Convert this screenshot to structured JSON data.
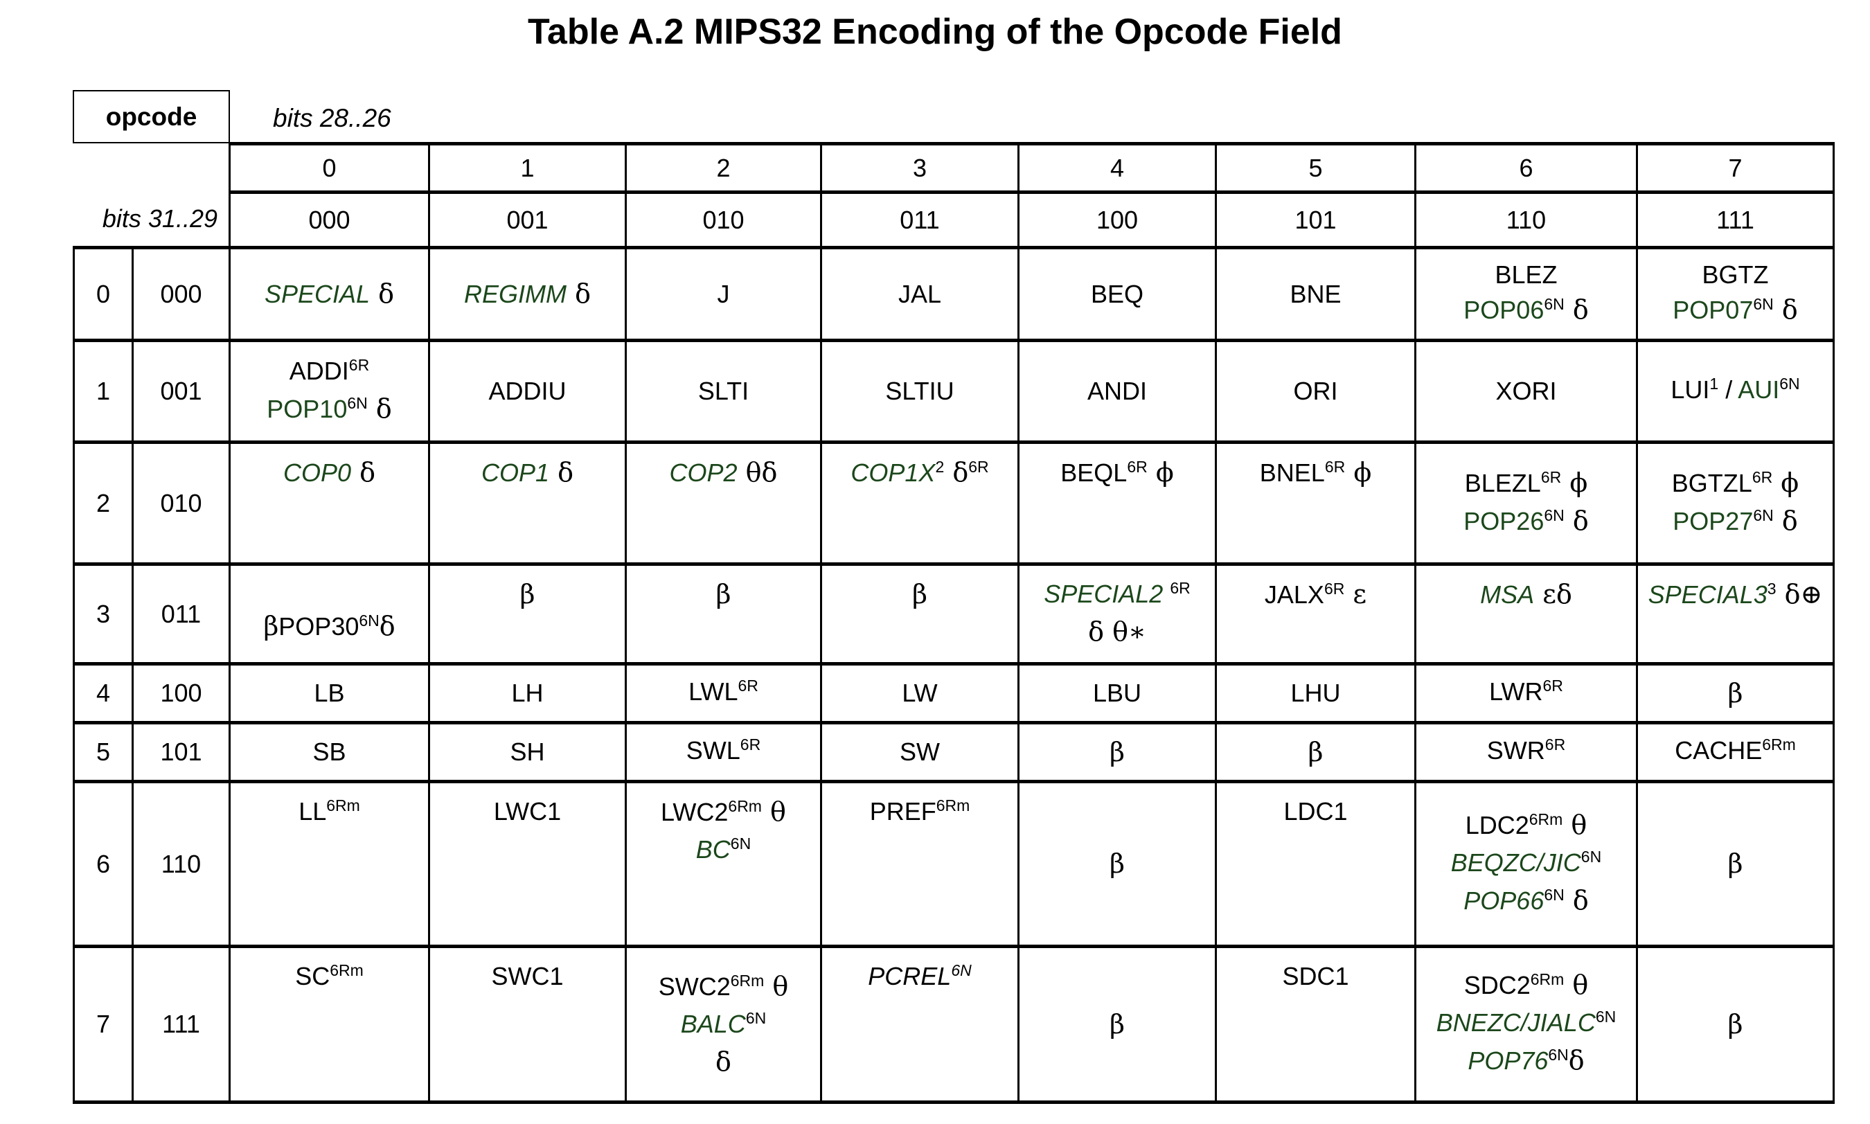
{
  "title": "Table A.2 MIPS32 Encoding of the Opcode Field",
  "corner": {
    "opcode_label": "opcode",
    "bits_cols_label": "bits 28..26",
    "bits_rows_label": "bits 31..29"
  },
  "colors": {
    "green": "#1b471b",
    "black": "#000000"
  },
  "columns": {
    "dec": [
      "0",
      "1",
      "2",
      "3",
      "4",
      "5",
      "6",
      "7"
    ],
    "bin": [
      "000",
      "001",
      "010",
      "011",
      "100",
      "101",
      "110",
      "111"
    ]
  },
  "rows": [
    {
      "dec": "0",
      "bin": "000",
      "cells": [
        {
          "lines": [
            [
              [
                "SPECIAL",
                "gi"
              ],
              [
                " δ",
                "sym"
              ]
            ]
          ]
        },
        {
          "lines": [
            [
              [
                "REGIMM",
                "gi"
              ],
              [
                " δ",
                "sym"
              ]
            ]
          ]
        },
        {
          "lines": [
            [
              [
                "J",
                "b"
              ]
            ]
          ]
        },
        {
          "lines": [
            [
              [
                "JAL",
                "b"
              ]
            ]
          ]
        },
        {
          "lines": [
            [
              [
                "BEQ",
                "b"
              ]
            ]
          ]
        },
        {
          "lines": [
            [
              [
                "BNE",
                "b"
              ]
            ]
          ]
        },
        {
          "lines": [
            [
              [
                "BLEZ",
                "b"
              ]
            ],
            [
              [
                "POP06",
                "g"
              ],
              [
                "6N",
                "sup"
              ],
              [
                " δ",
                "sym"
              ]
            ]
          ]
        },
        {
          "lines": [
            [
              [
                "BGTZ",
                "b"
              ]
            ],
            [
              [
                "POP07",
                "g"
              ],
              [
                "6N",
                "sup"
              ],
              [
                " δ",
                "sym"
              ]
            ]
          ]
        }
      ]
    },
    {
      "dec": "1",
      "bin": "001",
      "cells": [
        {
          "lines": [
            [
              [
                "ADDI",
                "b"
              ],
              [
                "6R",
                "sup"
              ]
            ],
            [
              [
                "POP10",
                "g"
              ],
              [
                "6N",
                "sup"
              ],
              [
                " δ",
                "sym"
              ]
            ]
          ]
        },
        {
          "lines": [
            [
              [
                "ADDIU",
                "b"
              ]
            ]
          ]
        },
        {
          "lines": [
            [
              [
                "SLTI",
                "b"
              ]
            ]
          ]
        },
        {
          "lines": [
            [
              [
                "SLTIU",
                "b"
              ]
            ]
          ]
        },
        {
          "lines": [
            [
              [
                "ANDI",
                "b"
              ]
            ]
          ]
        },
        {
          "lines": [
            [
              [
                "ORI",
                "b"
              ]
            ]
          ]
        },
        {
          "lines": [
            [
              [
                "XORI",
                "b"
              ]
            ]
          ]
        },
        {
          "lines": [
            [
              [
                "LUI",
                "b"
              ],
              [
                "1",
                "sup"
              ],
              [
                " / ",
                "b"
              ],
              [
                "AUI",
                "g"
              ],
              [
                "6N",
                "sup"
              ]
            ]
          ]
        }
      ]
    },
    {
      "dec": "2",
      "bin": "010",
      "cells": [
        {
          "va": "t",
          "lines": [
            [
              [
                "COP0",
                "gi"
              ],
              [
                " δ",
                "sym"
              ]
            ]
          ]
        },
        {
          "va": "t",
          "lines": [
            [
              [
                "COP1",
                "gi"
              ],
              [
                " δ",
                "sym"
              ]
            ]
          ]
        },
        {
          "va": "t",
          "lines": [
            [
              [
                "COP2",
                "gi"
              ],
              [
                " θδ",
                "sym"
              ]
            ]
          ]
        },
        {
          "va": "t",
          "lines": [
            [
              [
                "COP1X",
                "gi"
              ],
              [
                "2",
                "sup"
              ],
              [
                " δ",
                "sym"
              ],
              [
                "6R",
                "sup"
              ]
            ]
          ]
        },
        {
          "va": "t",
          "lines": [
            [
              [
                "BEQL",
                "b"
              ],
              [
                "6R",
                "sup"
              ],
              [
                " ϕ",
                "sym"
              ]
            ]
          ]
        },
        {
          "va": "t",
          "lines": [
            [
              [
                "BNEL",
                "b"
              ],
              [
                "6R",
                "sup"
              ],
              [
                " ϕ",
                "sym"
              ]
            ]
          ]
        },
        {
          "lines": [
            [
              [
                "BLEZL",
                "b"
              ],
              [
                "6R",
                "sup"
              ],
              [
                " ϕ",
                "sym"
              ]
            ],
            [
              [
                "POP26",
                "g"
              ],
              [
                "6N",
                "sup"
              ],
              [
                " δ",
                "sym"
              ]
            ]
          ]
        },
        {
          "lines": [
            [
              [
                "BGTZL",
                "b"
              ],
              [
                "6R",
                "sup"
              ],
              [
                " ϕ",
                "sym"
              ]
            ],
            [
              [
                "POP27",
                "g"
              ],
              [
                "6N",
                "sup"
              ],
              [
                " δ",
                "sym"
              ]
            ]
          ]
        }
      ]
    },
    {
      "dec": "3",
      "bin": "011",
      "cells": [
        {
          "va": "lo",
          "lines": [
            [
              [
                "β",
                "sym"
              ],
              [
                "POP30",
                "b"
              ],
              [
                "6N",
                "sup"
              ],
              [
                "δ",
                "sym"
              ]
            ]
          ]
        },
        {
          "va": "t",
          "lines": [
            [
              [
                "β",
                "sym"
              ]
            ]
          ]
        },
        {
          "va": "t",
          "lines": [
            [
              [
                "β",
                "sym"
              ]
            ]
          ]
        },
        {
          "va": "t",
          "lines": [
            [
              [
                "β",
                "sym"
              ]
            ]
          ]
        },
        {
          "va": "t",
          "lines": [
            [
              [
                "SPECIAL2",
                "gi"
              ],
              [
                " ",
                "b"
              ],
              [
                "6R",
                "sup"
              ]
            ],
            [
              [
                "δ θ∗",
                "sym"
              ]
            ]
          ]
        },
        {
          "va": "t",
          "lines": [
            [
              [
                "JALX",
                "b"
              ],
              [
                "6R",
                "sup"
              ],
              [
                " ε",
                "sym"
              ]
            ]
          ]
        },
        {
          "va": "t",
          "lines": [
            [
              [
                "MSA",
                "gi"
              ],
              [
                " εδ",
                "sym"
              ]
            ]
          ]
        },
        {
          "va": "t",
          "lines": [
            [
              [
                "SPECIAL3",
                "gi"
              ],
              [
                "3",
                "sup"
              ],
              [
                " δ⊕",
                "sym"
              ]
            ]
          ]
        }
      ]
    },
    {
      "dec": "4",
      "bin": "100",
      "cells": [
        {
          "lines": [
            [
              [
                "LB",
                "b"
              ]
            ]
          ]
        },
        {
          "lines": [
            [
              [
                "LH",
                "b"
              ]
            ]
          ]
        },
        {
          "lines": [
            [
              [
                "LWL",
                "b"
              ],
              [
                "6R",
                "sup"
              ]
            ]
          ]
        },
        {
          "lines": [
            [
              [
                "LW",
                "b"
              ]
            ]
          ]
        },
        {
          "lines": [
            [
              [
                "LBU",
                "b"
              ]
            ]
          ]
        },
        {
          "lines": [
            [
              [
                "LHU",
                "b"
              ]
            ]
          ]
        },
        {
          "lines": [
            [
              [
                "LWR",
                "b"
              ],
              [
                "6R",
                "sup"
              ]
            ]
          ]
        },
        {
          "lines": [
            [
              [
                "β",
                "sym"
              ]
            ]
          ]
        }
      ]
    },
    {
      "dec": "5",
      "bin": "101",
      "cells": [
        {
          "lines": [
            [
              [
                "SB",
                "b"
              ]
            ]
          ]
        },
        {
          "lines": [
            [
              [
                "SH",
                "b"
              ]
            ]
          ]
        },
        {
          "lines": [
            [
              [
                "SWL",
                "b"
              ],
              [
                "6R",
                "sup"
              ]
            ]
          ]
        },
        {
          "lines": [
            [
              [
                "SW",
                "b"
              ]
            ]
          ]
        },
        {
          "lines": [
            [
              [
                "β",
                "sym"
              ]
            ]
          ]
        },
        {
          "lines": [
            [
              [
                "β",
                "sym"
              ]
            ]
          ]
        },
        {
          "lines": [
            [
              [
                "SWR",
                "b"
              ],
              [
                "6R",
                "sup"
              ]
            ]
          ]
        },
        {
          "lines": [
            [
              [
                "CACHE",
                "b"
              ],
              [
                "6Rm",
                "sup"
              ]
            ]
          ]
        }
      ]
    },
    {
      "dec": "6",
      "bin": "110",
      "cells": [
        {
          "va": "t",
          "lines": [
            [
              [
                "LL",
                "b"
              ],
              [
                "6Rm",
                "sup"
              ]
            ]
          ]
        },
        {
          "va": "t",
          "lines": [
            [
              [
                "LWC1",
                "b"
              ]
            ]
          ]
        },
        {
          "va": "t",
          "lines": [
            [
              [
                "LWC2",
                "b"
              ],
              [
                "6Rm",
                "sup"
              ],
              [
                " θ",
                "sym"
              ]
            ],
            [
              [
                "BC",
                "gi"
              ],
              [
                "6N",
                "sup"
              ]
            ]
          ]
        },
        {
          "va": "t",
          "lines": [
            [
              [
                "PREF",
                "b"
              ],
              [
                "6Rm",
                "sup"
              ]
            ]
          ]
        },
        {
          "lines": [
            [
              [
                "β",
                "sym"
              ]
            ]
          ]
        },
        {
          "va": "t",
          "lines": [
            [
              [
                "LDC1",
                "b"
              ]
            ]
          ]
        },
        {
          "lines": [
            [
              [
                "LDC2",
                "b"
              ],
              [
                "6Rm",
                "sup"
              ],
              [
                " θ",
                "sym"
              ]
            ],
            [
              [
                "BEQZC/JIC",
                "gi"
              ],
              [
                "6N",
                "sup"
              ]
            ],
            [
              [
                "POP66",
                "gi"
              ],
              [
                "6N",
                "sup"
              ],
              [
                " δ",
                "sym"
              ]
            ]
          ]
        },
        {
          "lines": [
            [
              [
                "β",
                "sym"
              ]
            ]
          ]
        }
      ]
    },
    {
      "dec": "7",
      "bin": "111",
      "cells": [
        {
          "va": "t",
          "lines": [
            [
              [
                "SC",
                "b"
              ],
              [
                "6Rm",
                "sup"
              ]
            ]
          ]
        },
        {
          "va": "t",
          "lines": [
            [
              [
                "SWC1",
                "b"
              ]
            ]
          ]
        },
        {
          "lines": [
            [
              [
                "SWC2",
                "b"
              ],
              [
                "6Rm",
                "sup"
              ],
              [
                " θ",
                "sym"
              ]
            ],
            [
              [
                "BALC",
                "gi"
              ],
              [
                "6N",
                "sup"
              ]
            ],
            [
              [
                "δ",
                "sym"
              ]
            ]
          ]
        },
        {
          "va": "t",
          "lines": [
            [
              [
                "PCREL",
                "bi"
              ],
              [
                "6N",
                "supi"
              ]
            ]
          ]
        },
        {
          "lines": [
            [
              [
                "β",
                "sym"
              ]
            ]
          ]
        },
        {
          "va": "t",
          "lines": [
            [
              [
                "SDC1",
                "b"
              ]
            ]
          ]
        },
        {
          "lines": [
            [
              [
                "SDC2",
                "b"
              ],
              [
                "6Rm",
                "sup"
              ],
              [
                " θ",
                "sym"
              ]
            ],
            [
              [
                "BNEZC/JIALC",
                "gi"
              ],
              [
                "6N",
                "sup"
              ]
            ],
            [
              [
                "POP76",
                "gi"
              ],
              [
                "6N",
                "sup"
              ],
              [
                "δ",
                "sym"
              ]
            ]
          ]
        },
        {
          "lines": [
            [
              [
                "β",
                "sym"
              ]
            ]
          ]
        }
      ]
    }
  ]
}
